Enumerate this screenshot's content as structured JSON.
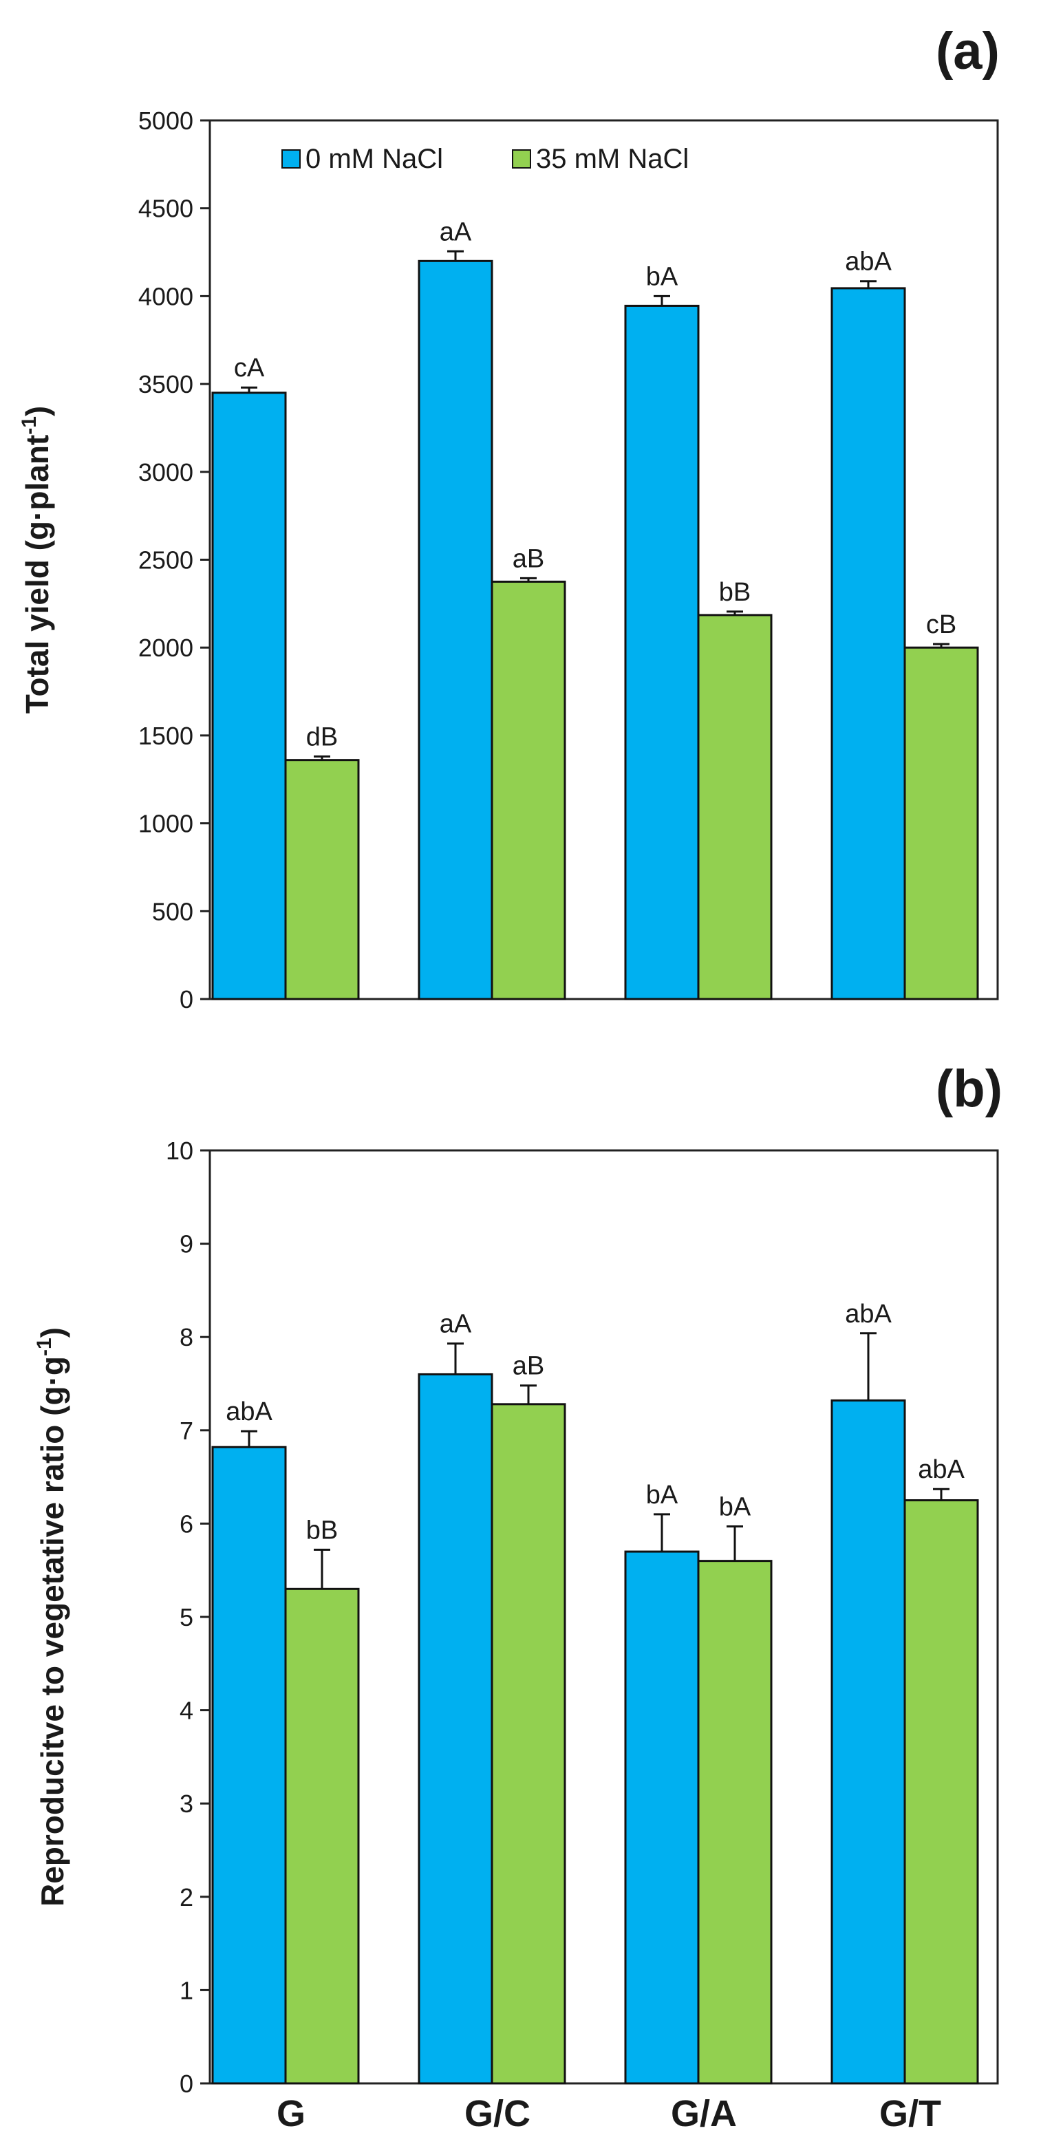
{
  "chart_data": [
    {
      "type": "bar",
      "panel_label": "(a)",
      "title": "",
      "xlabel": "",
      "ylabel": "Total yield (g·plant",
      "ylabel_sup": "-1",
      "ylabel_close": ")",
      "ylim": [
        0,
        5000
      ],
      "ytick_step": 500,
      "yticks": [
        "0",
        "500",
        "1000",
        "1500",
        "2000",
        "2500",
        "3000",
        "3500",
        "4000",
        "4500",
        "5000"
      ],
      "categories": [
        "G",
        "G/C",
        "G/A",
        "G/T"
      ],
      "show_category_labels": false,
      "legend": {
        "placement": "top-left",
        "entries": [
          "0 mM NaCl",
          "35 mM NaCl"
        ]
      },
      "series": [
        {
          "name": "0 mM NaCl",
          "color": "#00b0f0",
          "values": [
            3450,
            4200,
            3945,
            4045
          ],
          "errors": [
            30,
            55,
            55,
            40
          ],
          "labels": [
            "cA",
            "aA",
            "bA",
            "abA"
          ]
        },
        {
          "name": "35 mM NaCl",
          "color": "#92d050",
          "values": [
            1360,
            2375,
            2185,
            2000
          ],
          "errors": [
            20,
            20,
            20,
            20
          ],
          "labels": [
            "dB",
            "aB",
            "bB",
            "cB"
          ]
        }
      ]
    },
    {
      "type": "bar",
      "panel_label": "(b)",
      "title": "",
      "xlabel": "",
      "ylabel": "Reproducitve to vegetative ratio (g·g",
      "ylabel_sup": "-1",
      "ylabel_close": ")",
      "ylim": [
        0,
        10
      ],
      "ytick_step": 1,
      "yticks": [
        "0",
        "1",
        "2",
        "3",
        "4",
        "5",
        "6",
        "7",
        "8",
        "9",
        "10"
      ],
      "categories": [
        "G",
        "G/C",
        "G/A",
        "G/T"
      ],
      "show_category_labels": true,
      "series": [
        {
          "name": "0 mM NaCl",
          "color": "#00b0f0",
          "values": [
            6.82,
            7.6,
            5.7,
            7.32
          ],
          "errors": [
            0.17,
            0.33,
            0.4,
            0.72
          ],
          "labels": [
            "abA",
            "aA",
            "bA",
            "abA"
          ]
        },
        {
          "name": "35 mM NaCl",
          "color": "#92d050",
          "values": [
            5.3,
            7.28,
            5.6,
            6.25
          ],
          "errors": [
            0.42,
            0.2,
            0.37,
            0.12
          ],
          "labels": [
            "bB",
            "aB",
            "bA",
            "abA"
          ]
        }
      ]
    }
  ]
}
